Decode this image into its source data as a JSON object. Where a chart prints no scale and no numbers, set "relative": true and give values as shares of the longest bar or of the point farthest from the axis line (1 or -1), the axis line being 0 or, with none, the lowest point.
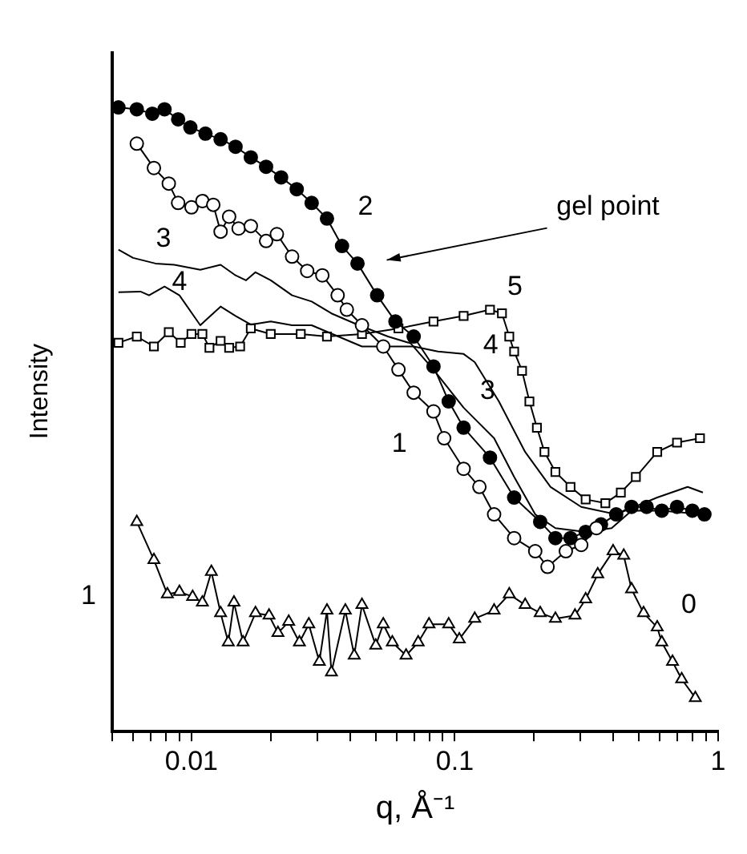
{
  "chart_data": {
    "type": "line",
    "xlabel": "q, Å⁻¹",
    "ylabel": "Intensity",
    "log": "x",
    "relative": true,
    "grid": false,
    "legend": false,
    "xlim": [
      0.005,
      1
    ],
    "xticks": [
      {
        "value": 0.005,
        "label": null
      },
      {
        "value": 0.006,
        "label": null
      },
      {
        "value": 0.007,
        "label": null
      },
      {
        "value": 0.008,
        "label": null
      },
      {
        "value": 0.009,
        "label": null
      },
      0.01,
      {
        "value": 0.02,
        "label": null
      },
      {
        "value": 0.03,
        "label": null
      },
      {
        "value": 0.04,
        "label": null
      },
      {
        "value": 0.05,
        "label": null
      },
      {
        "value": 0.06,
        "label": null
      },
      {
        "value": 0.07,
        "label": null
      },
      {
        "value": 0.08,
        "label": null
      },
      {
        "value": 0.09,
        "label": null
      },
      0.1,
      {
        "value": 0.2,
        "label": null
      },
      {
        "value": 0.3,
        "label": null
      },
      {
        "value": 0.4,
        "label": null
      },
      {
        "value": 0.5,
        "label": null
      },
      {
        "value": 0.6,
        "label": null
      },
      {
        "value": 0.7,
        "label": null
      },
      {
        "value": 0.8,
        "label": null
      },
      {
        "value": 0.9,
        "label": null
      },
      1
    ],
    "annotations": [
      "gel point",
      "1"
    ],
    "series": [
      {
        "name": "0",
        "color": "#000000",
        "marker": "triangle",
        "x": [
          0.0062,
          0.0072,
          0.0081,
          0.009,
          0.0101,
          0.011,
          0.0119,
          0.0129,
          0.0138,
          0.0145,
          0.0157,
          0.0175,
          0.0197,
          0.0213,
          0.0234,
          0.0257,
          0.0279,
          0.0306,
          0.0327,
          0.034,
          0.0384,
          0.0415,
          0.0444,
          0.0501,
          0.0535,
          0.0579,
          0.0653,
          0.0726,
          0.0798,
          0.0948,
          0.104,
          0.119,
          0.141,
          0.161,
          0.185,
          0.211,
          0.241,
          0.286,
          0.314,
          0.349,
          0.399,
          0.438,
          0.469,
          0.521,
          0.587,
          0.611,
          0.671,
          0.727,
          0.819
        ],
        "values": [
          0.336,
          0.275,
          0.22,
          0.224,
          0.216,
          0.207,
          0.256,
          0.19,
          0.143,
          0.207,
          0.143,
          0.19,
          0.186,
          0.158,
          0.176,
          0.143,
          0.172,
          0.112,
          0.194,
          0.095,
          0.194,
          0.122,
          0.203,
          0.138,
          0.172,
          0.143,
          0.122,
          0.143,
          0.172,
          0.172,
          0.148,
          0.181,
          0.194,
          0.22,
          0.203,
          0.19,
          0.181,
          0.186,
          0.212,
          0.252,
          0.289,
          0.282,
          0.228,
          0.19,
          0.167,
          0.143,
          0.112,
          0.084,
          0.054
        ]
      },
      {
        "name": "1",
        "color": "#000000",
        "marker": "circle",
        "x": [
          0.0062,
          0.0072,
          0.0082,
          0.0089,
          0.01,
          0.011,
          0.0121,
          0.0129,
          0.0139,
          0.0151,
          0.0168,
          0.0192,
          0.0211,
          0.0241,
          0.0275,
          0.0314,
          0.0359,
          0.0389,
          0.0444,
          0.0535,
          0.0611,
          0.0698,
          0.083,
          0.0911,
          0.108,
          0.124,
          0.141,
          0.168,
          0.202,
          0.225,
          0.264,
          0.302,
          0.345
        ],
        "values": [
          0.942,
          0.903,
          0.878,
          0.847,
          0.84,
          0.85,
          0.844,
          0.801,
          0.825,
          0.806,
          0.81,
          0.786,
          0.797,
          0.761,
          0.738,
          0.731,
          0.699,
          0.676,
          0.651,
          0.617,
          0.58,
          0.543,
          0.513,
          0.47,
          0.421,
          0.392,
          0.348,
          0.31,
          0.289,
          0.264,
          0.289,
          0.299,
          0.326
        ]
      },
      {
        "name": "2",
        "color": "#000000",
        "marker": "circle",
        "x": [
          0.00528,
          0.0062,
          0.0071,
          0.0079,
          0.0089,
          0.0099,
          0.0113,
          0.0129,
          0.0147,
          0.0168,
          0.0192,
          0.0219,
          0.0251,
          0.0286,
          0.0327,
          0.0373,
          0.0427,
          0.0507,
          0.0595,
          0.0698,
          0.083,
          0.0948,
          0.108,
          0.136,
          0.168,
          0.211,
          0.241,
          0.275,
          0.314,
          0.359,
          0.41,
          0.469,
          0.535,
          0.611,
          0.698,
          0.798,
          0.887
        ],
        "values": [
          1,
          0.997,
          0.99,
          0.997,
          0.981,
          0.968,
          0.958,
          0.949,
          0.937,
          0.92,
          0.905,
          0.888,
          0.869,
          0.847,
          0.822,
          0.778,
          0.75,
          0.699,
          0.657,
          0.633,
          0.585,
          0.529,
          0.487,
          0.439,
          0.375,
          0.336,
          0.31,
          0.31,
          0.32,
          0.332,
          0.348,
          0.36,
          0.36,
          0.354,
          0.36,
          0.354,
          0.348
        ]
      },
      {
        "name": "3",
        "color": "#000000",
        "marker": "none",
        "x": [
          0.00528,
          0.006,
          0.0073,
          0.0086,
          0.0108,
          0.0129,
          0.0147,
          0.0161,
          0.0175,
          0.02,
          0.0241,
          0.0286,
          0.034,
          0.0427,
          0.0557,
          0.068,
          0.083,
          0.108,
          0.141,
          0.168,
          0.202,
          0.241,
          0.314,
          0.394,
          0.469,
          0.611,
          0.875
        ],
        "values": [
          0.772,
          0.759,
          0.75,
          0.748,
          0.74,
          0.748,
          0.731,
          0.723,
          0.736,
          0.723,
          0.699,
          0.689,
          0.67,
          0.652,
          0.633,
          0.622,
          0.58,
          0.519,
          0.47,
          0.408,
          0.348,
          0.326,
          0.32,
          0.326,
          0.354,
          0.354,
          0.348
        ]
      },
      {
        "name": "4",
        "color": "#000000",
        "marker": "none",
        "x": [
          0.00528,
          0.0064,
          0.0069,
          0.0079,
          0.009,
          0.0108,
          0.0129,
          0.0147,
          0.0168,
          0.02,
          0.0241,
          0.0286,
          0.0444,
          0.0698,
          0.0863,
          0.108,
          0.119,
          0.147,
          0.185,
          0.231,
          0.302,
          0.41,
          0.587,
          0.766,
          0.875
        ],
        "values": [
          0.704,
          0.705,
          0.699,
          0.713,
          0.699,
          0.651,
          0.681,
          0.666,
          0.652,
          0.657,
          0.651,
          0.651,
          0.617,
          0.617,
          0.609,
          0.605,
          0.592,
          0.529,
          0.448,
          0.392,
          0.36,
          0.348,
          0.375,
          0.392,
          0.383
        ]
      },
      {
        "name": "5",
        "color": "#000000",
        "marker": "square",
        "x": [
          0.00528,
          0.0062,
          0.0072,
          0.0082,
          0.0091,
          0.01,
          0.011,
          0.0117,
          0.0129,
          0.0139,
          0.0153,
          0.0168,
          0.02,
          0.026,
          0.0327,
          0.0444,
          0.0611,
          0.083,
          0.108,
          0.136,
          0.151,
          0.161,
          0.168,
          0.18,
          0.192,
          0.205,
          0.219,
          0.241,
          0.275,
          0.314,
          0.373,
          0.427,
          0.487,
          0.587,
          0.698,
          0.853
        ],
        "values": [
          0.623,
          0.633,
          0.617,
          0.64,
          0.623,
          0.637,
          0.637,
          0.615,
          0.626,
          0.615,
          0.617,
          0.646,
          0.637,
          0.637,
          0.633,
          0.637,
          0.646,
          0.657,
          0.666,
          0.676,
          0.67,
          0.633,
          0.609,
          0.578,
          0.529,
          0.487,
          0.448,
          0.416,
          0.392,
          0.372,
          0.366,
          0.383,
          0.408,
          0.448,
          0.463,
          0.47
        ]
      }
    ]
  }
}
